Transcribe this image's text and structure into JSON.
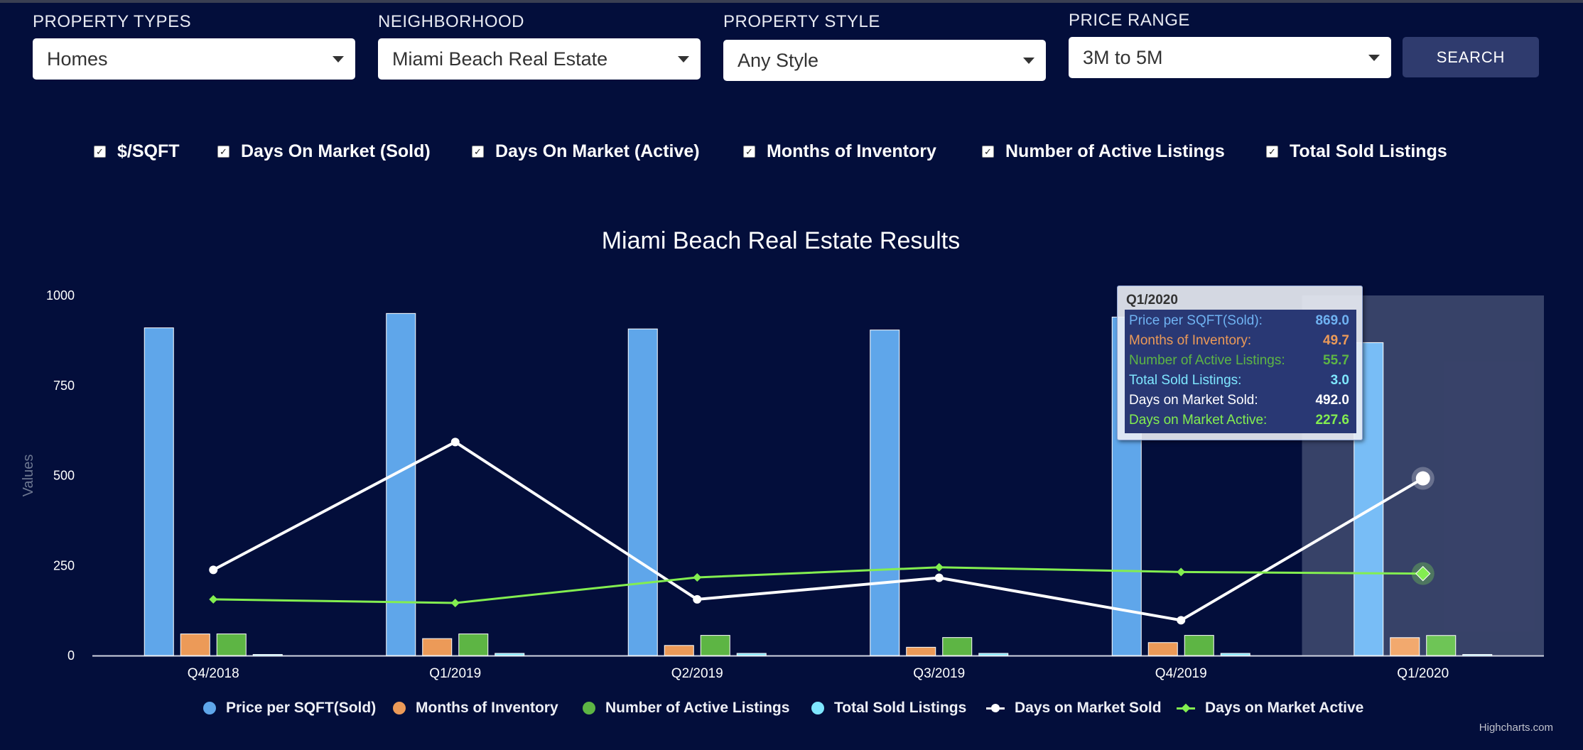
{
  "filters": [
    {
      "label": "PROPERTY TYPES",
      "value": "Homes"
    },
    {
      "label": "NEIGHBORHOOD",
      "value": "Miami Beach Real Estate"
    },
    {
      "label": "PROPERTY STYLE",
      "value": "Any Style"
    },
    {
      "label": "PRICE RANGE",
      "value": "3M to 5M"
    }
  ],
  "search_label": "SEARCH",
  "toggles": [
    {
      "label": "$/SQFT",
      "checked": true
    },
    {
      "label": "Days On Market (Sold)",
      "checked": true
    },
    {
      "label": "Days On Market (Active)",
      "checked": true
    },
    {
      "label": "Months of Inventory",
      "checked": true
    },
    {
      "label": "Number of Active Listings",
      "checked": true
    },
    {
      "label": "Total Sold Listings",
      "checked": true
    }
  ],
  "checkmark": "✓",
  "credits": "Highcharts.com",
  "chart_data": {
    "type": "bar",
    "title": "Miami Beach Real Estate Results",
    "ylabel": "Values",
    "xlabel": "",
    "ylim": [
      0,
      1000
    ],
    "yticks": [
      0,
      250,
      500,
      750,
      1000
    ],
    "grid": false,
    "legend_position": "bottom",
    "categories": [
      "Q4/2018",
      "Q1/2019",
      "Q2/2019",
      "Q3/2019",
      "Q4/2019",
      "Q1/2020"
    ],
    "highlighted_category": "Q1/2020",
    "series": [
      {
        "name": "Price per SQFT(Sold)",
        "type": "column",
        "color": "#5fa6ea",
        "values": [
          910,
          950,
          907,
          904,
          940,
          869.0
        ]
      },
      {
        "name": "Months of Inventory",
        "type": "column",
        "color": "#ec9a58",
        "values": [
          60,
          47,
          28,
          23,
          36,
          49.7
        ]
      },
      {
        "name": "Number of Active Listings",
        "type": "column",
        "color": "#5db544",
        "values": [
          60,
          60,
          56,
          50,
          56,
          55.7
        ]
      },
      {
        "name": "Total Sold Listings",
        "type": "column",
        "color": "#7ee6ff",
        "values": [
          3,
          6,
          6,
          6,
          6,
          3.0
        ]
      },
      {
        "name": "Days on Market Sold",
        "type": "line",
        "color": "#ffffff",
        "values": [
          238,
          593,
          156,
          216,
          98,
          492.0
        ]
      },
      {
        "name": "Days on Market Active",
        "type": "line",
        "color": "#83ee50",
        "values": [
          156,
          146,
          217,
          245,
          232,
          227.6
        ]
      }
    ]
  },
  "tooltip": {
    "header": "Q1/2020",
    "rows": [
      {
        "label": "Price per SQFT(Sold):",
        "value": "869.0",
        "color": "#6fb2f2"
      },
      {
        "label": "Months of Inventory:",
        "value": "49.7",
        "color": "#ec9a58"
      },
      {
        "label": "Number of Active Listings:",
        "value": "55.7",
        "color": "#5db544"
      },
      {
        "label": "Total Sold Listings:",
        "value": "3.0",
        "color": "#7ee6ff"
      },
      {
        "label": "Days on Market Sold:",
        "value": "492.0",
        "color": "#ffffff"
      },
      {
        "label": "Days on Market Active:",
        "value": "227.6",
        "color": "#83ee50"
      }
    ]
  }
}
